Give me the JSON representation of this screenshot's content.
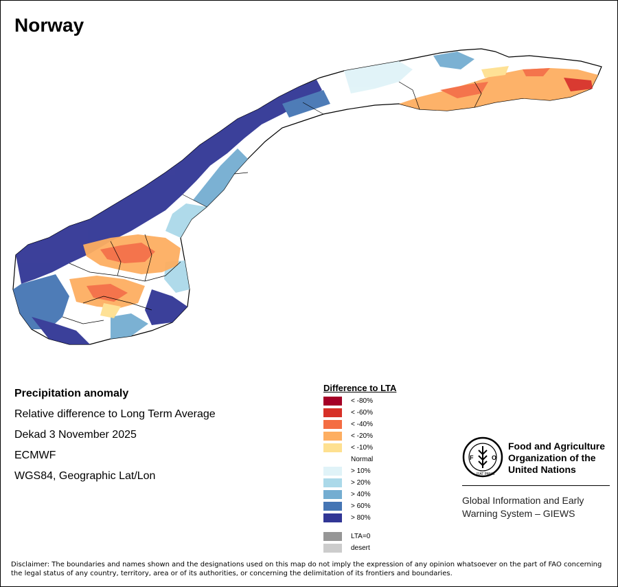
{
  "map": {
    "title": "Norway",
    "colors": {
      "outline": "#000000",
      "normal": "#ffffff",
      "lt80": "#a50026",
      "lt60": "#d73027",
      "lt40": "#f46d43",
      "lt20": "#fdae61",
      "lt10": "#fee090",
      "gt10": "#e0f3f8",
      "gt20": "#abd9e9",
      "gt40": "#74add1",
      "gt60": "#4575b4",
      "gt80": "#313695"
    }
  },
  "info": {
    "heading": "Precipitation anomaly",
    "line1": "Relative difference to Long Term Average",
    "line2": "Dekad 3 November 2025",
    "line3": "ECMWF",
    "line4": "WGS84, Geographic Lat/Lon"
  },
  "legend": {
    "title": "Difference to LTA",
    "items": [
      {
        "label": "< -80%",
        "color": "#a50026"
      },
      {
        "label": "< -60%",
        "color": "#d73027"
      },
      {
        "label": "< -40%",
        "color": "#f46d43"
      },
      {
        "label": "< -20%",
        "color": "#fdae61"
      },
      {
        "label": "< -10%",
        "color": "#fee090"
      },
      {
        "label": "Normal",
        "color": "#ffffff"
      },
      {
        "label": "> 10%",
        "color": "#e0f3f8"
      },
      {
        "label": "> 20%",
        "color": "#abd9e9"
      },
      {
        "label": "> 40%",
        "color": "#74add1"
      },
      {
        "label": "> 60%",
        "color": "#4575b4"
      },
      {
        "label": "> 80%",
        "color": "#313695"
      }
    ],
    "extra": [
      {
        "label": "LTA=0",
        "color": "#969696"
      },
      {
        "label": "desert",
        "color": "#cccccc"
      }
    ]
  },
  "fao": {
    "line1": "Food and Agriculture",
    "line2": "Organization of the",
    "line3": "United Nations",
    "logo_text": "FAO",
    "motto": "FIAT PANIS"
  },
  "giews": {
    "line1": "Global Information and Early",
    "line2": "Warning System – GIEWS"
  },
  "disclaimer": "Disclaimer: The boundaries and names shown and the designations used on this map do not imply the expression of any opinion whatsoever on the part of FAO concerning the legal status of any country, territory, area or of its authorities, or concerning the delimitation of its frontiers and boundaries."
}
